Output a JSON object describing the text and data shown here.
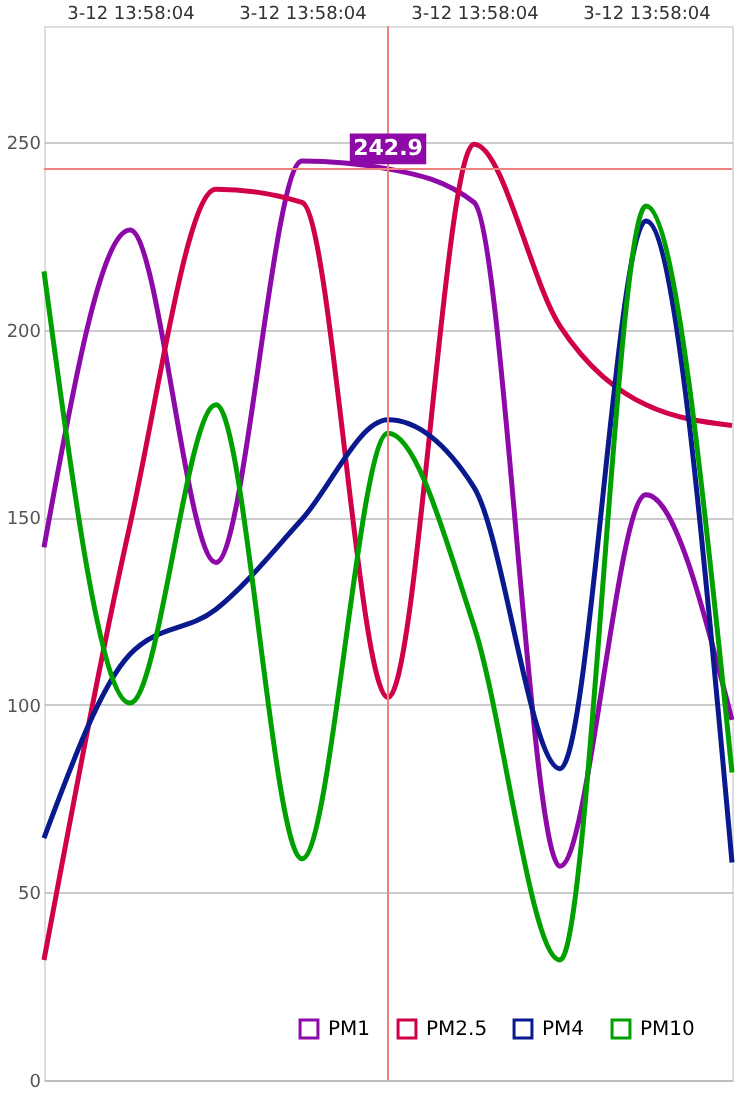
{
  "chart_data": {
    "type": "line",
    "categories": [
      null,
      "3-12 13:58:04",
      null,
      "3-12 13:58:04",
      null,
      "3-12 13:58:04",
      null,
      "3-12 13:58:04",
      null
    ],
    "series": [
      {
        "name": "PM1",
        "color": "#8e0aa8",
        "values": [
          142,
          226.6,
          138,
          245,
          242.9,
          234,
          57,
          156,
          96
        ]
      },
      {
        "name": "PM2.5",
        "color": "#d0004a",
        "values": [
          32,
          148,
          237.5,
          234,
          102,
          249.5,
          201,
          180,
          174.5
        ]
      },
      {
        "name": "PM4",
        "color": "#0a1a8e",
        "values": [
          64.5,
          113.5,
          125.5,
          149.5,
          176,
          158,
          83,
          229,
          58
        ]
      },
      {
        "name": "PM10",
        "color": "#00a000",
        "values": [
          215.6,
          100.5,
          180,
          59,
          172.4,
          121,
          32,
          233,
          82
        ]
      }
    ],
    "ylim": [
      0,
      281
    ],
    "yticks": [
      0,
      50,
      100,
      150,
      200,
      250
    ],
    "grid": "y",
    "legend": "bottom right",
    "marker": "none",
    "line_style": "solid",
    "ref_lines": [
      {
        "axis": "y",
        "value": 242.9,
        "color": "#f08080"
      }
    ],
    "annotations": [
      {
        "text": "242.9",
        "y": 242.9
      }
    ]
  }
}
